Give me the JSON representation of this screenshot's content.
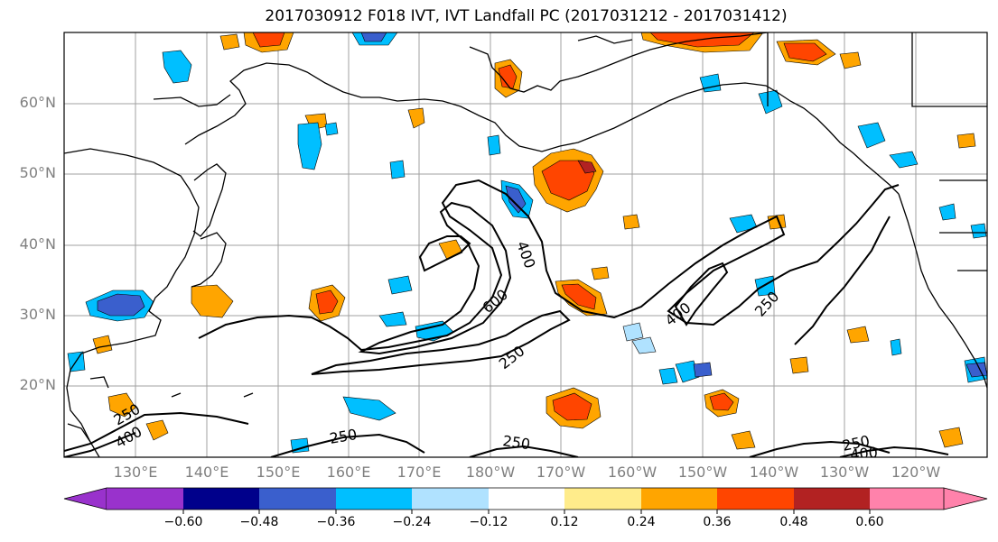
{
  "title": "2017030912 F018 IVT, IVT Landfall PC (2017031212 - 2017031412)",
  "lat_labels": [
    "60°N",
    "50°N",
    "40°N",
    "30°N",
    "20°N"
  ],
  "lon_labels": [
    "130°E",
    "140°E",
    "150°E",
    "160°E",
    "170°E",
    "180°W",
    "170°W",
    "160°W",
    "150°W",
    "140°W",
    "130°W",
    "120°W"
  ],
  "contour_labels": [
    "400",
    "600",
    "250",
    "400",
    "250",
    "250",
    "400",
    "250",
    "250",
    "250",
    "400"
  ],
  "colorbar": {
    "ticks": [
      "−0.60",
      "−0.48",
      "−0.36",
      "−0.24",
      "−0.12",
      "0.12",
      "0.24",
      "0.36",
      "0.48",
      "0.60"
    ],
    "colors": [
      "#9932cc",
      "#00008b",
      "#3a5fcd",
      "#00bfff",
      "#b0e2ff",
      "#ffffff",
      "#ffec8b",
      "#ffa500",
      "#ff4500",
      "#b22222",
      "#ff82ab"
    ]
  }
}
